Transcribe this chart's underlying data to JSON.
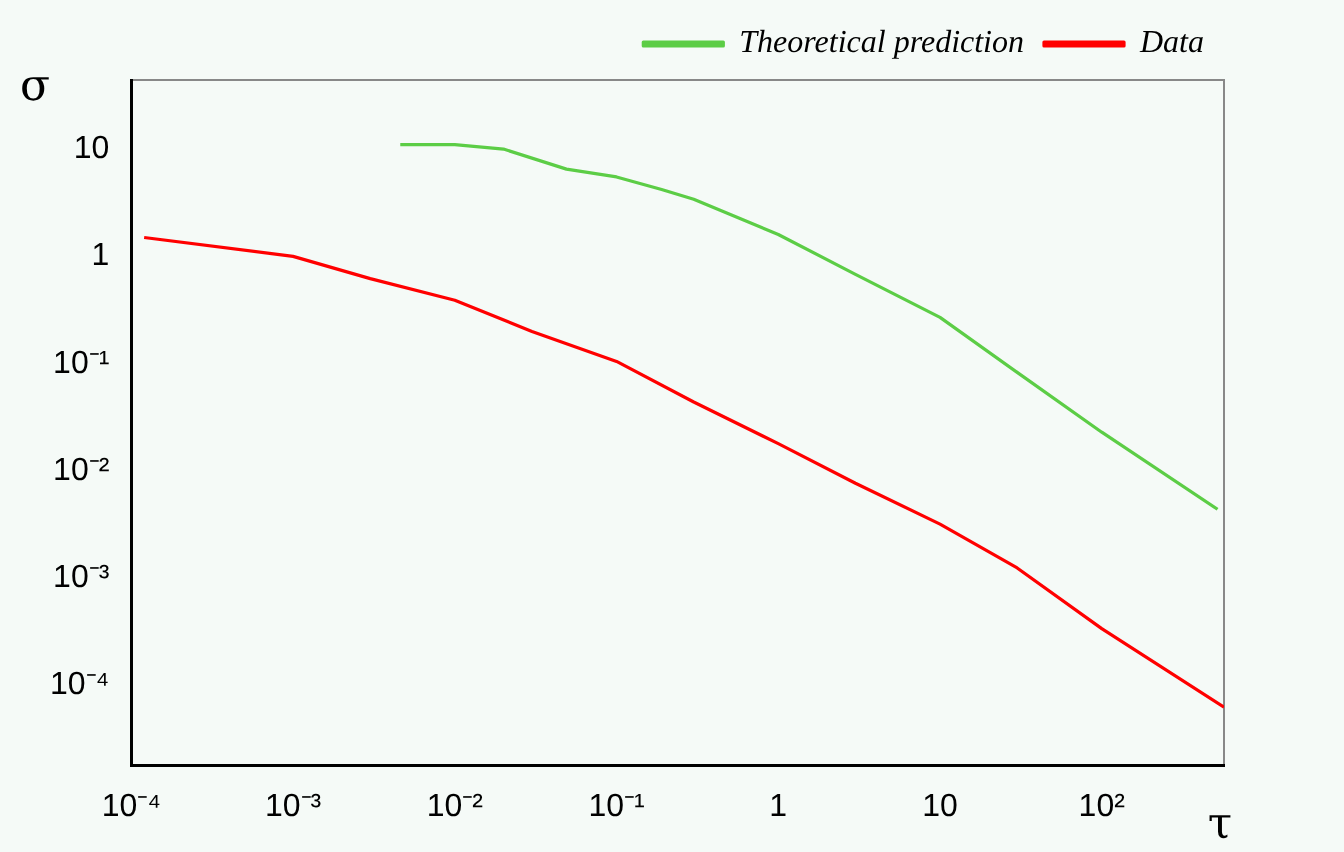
{
  "chart_data": {
    "type": "line",
    "xlabel": "τ",
    "ylabel": "σ",
    "log": "xy",
    "marker": "none",
    "line_style": "solid",
    "legend": "top right",
    "xlim": [
      0.0001,
      570
    ],
    "ylim": [
      1.8e-05,
      44
    ],
    "xticks": [
      {
        "value": 0.0001,
        "label": "10⁻⁴"
      },
      {
        "value": 0.001,
        "label": "10⁻³"
      },
      {
        "value": 0.01,
        "label": "10⁻²"
      },
      {
        "value": 0.1,
        "label": "10⁻¹"
      },
      1,
      10,
      {
        "value": 100,
        "label": "10²"
      }
    ],
    "yticks": [
      {
        "value": 0.0001,
        "label": "10⁻⁴"
      },
      {
        "value": 0.001,
        "label": "10⁻³"
      },
      {
        "value": 0.01,
        "label": "10⁻²"
      },
      {
        "value": 0.1,
        "label": "10⁻¹"
      },
      1,
      10
    ],
    "series": [
      {
        "name": "Theoretical prediction",
        "color": "#5ccd46",
        "x": [
          0.0046,
          0.01,
          0.02,
          0.049,
          0.1,
          0.19,
          0.3,
          1,
          3,
          10,
          30,
          100,
          520
        ],
        "values": [
          11,
          11,
          10,
          6.5,
          5.5,
          4.2,
          3.4,
          1.6,
          0.68,
          0.27,
          0.083,
          0.023,
          0.0044
        ]
      },
      {
        "name": "Data",
        "color": "#ff0000",
        "x": [
          0.00012,
          0.001,
          0.003,
          0.01,
          0.03,
          0.1,
          0.3,
          1,
          3,
          10,
          30,
          100,
          570
        ],
        "values": [
          1.5,
          1.0,
          0.62,
          0.39,
          0.2,
          0.105,
          0.044,
          0.018,
          0.0077,
          0.0032,
          0.00125,
          0.00034,
          6.3e-05
        ]
      }
    ]
  }
}
